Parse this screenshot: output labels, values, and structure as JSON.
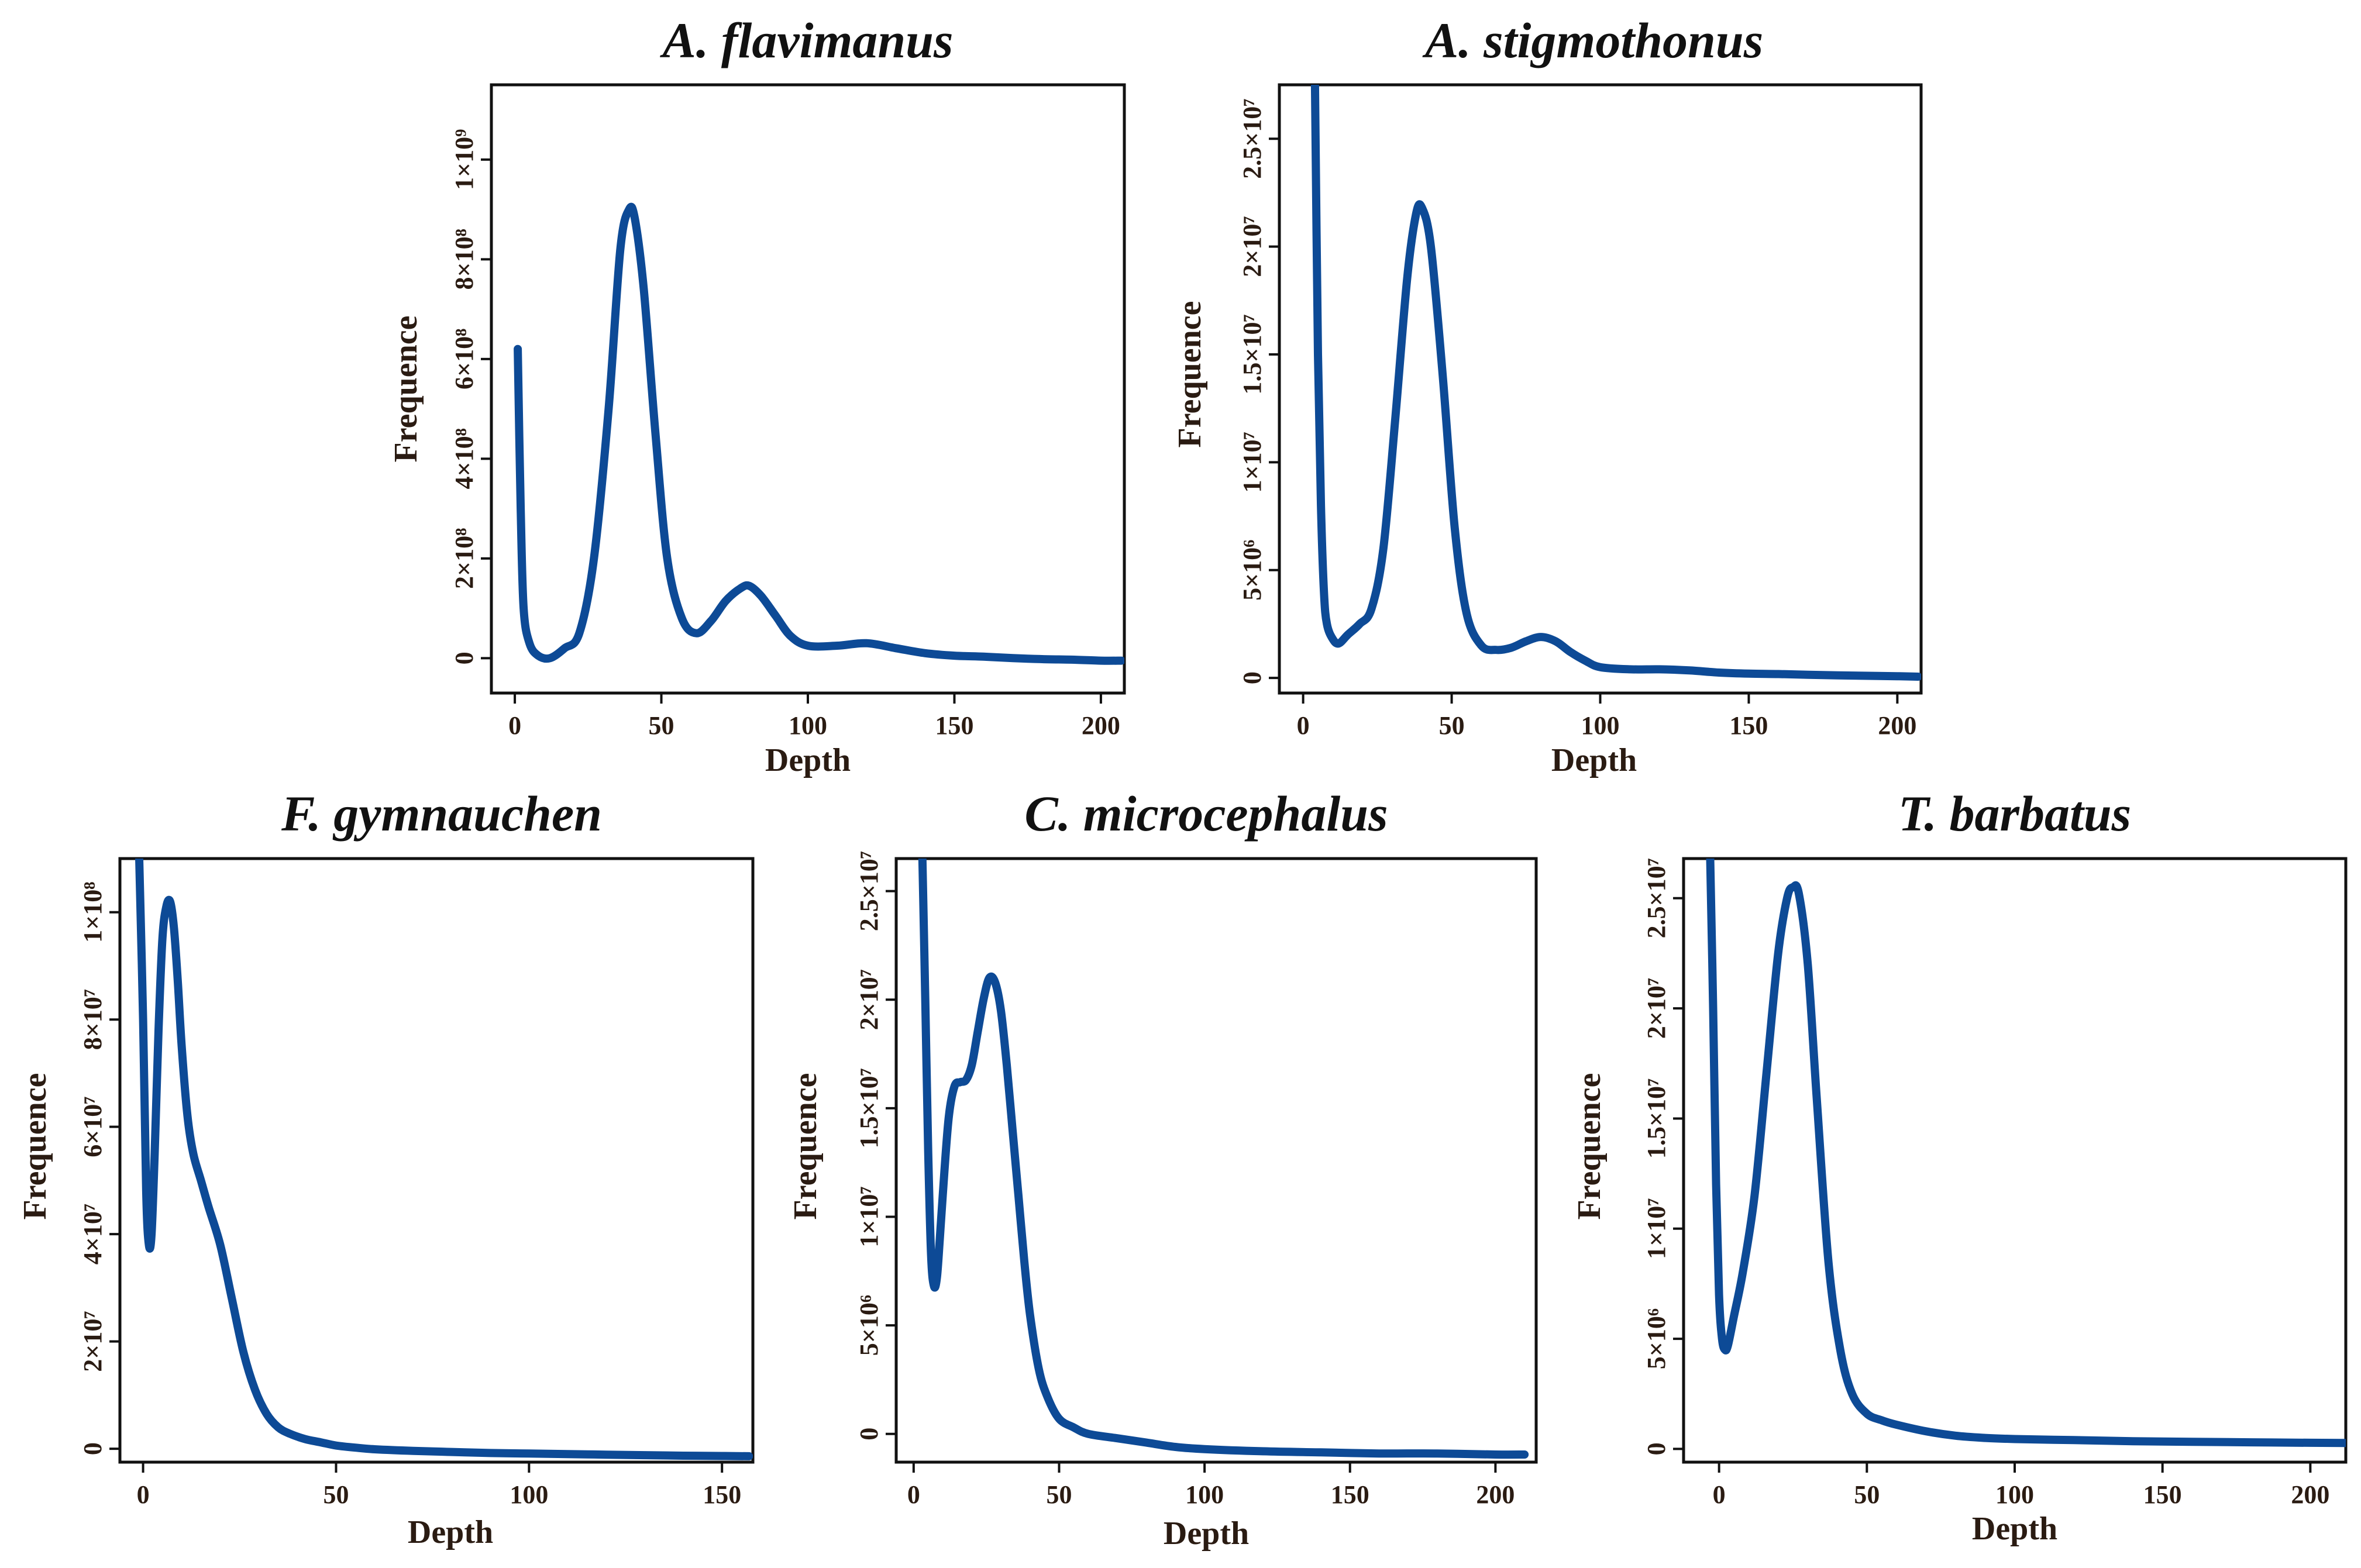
{
  "figure": {
    "line_color": "#0d4a96"
  },
  "chart_data": [
    {
      "id": "flavimanus",
      "type": "line",
      "title": "A. flavimanus",
      "xlabel": "Depth",
      "ylabel": "Frequence",
      "xlim": [
        -8,
        208
      ],
      "ylim": [
        -70000000,
        1150000000
      ],
      "xticks": [
        {
          "v": 0,
          "label": "0"
        },
        {
          "v": 50,
          "label": "50"
        },
        {
          "v": 100,
          "label": "100"
        },
        {
          "v": 150,
          "label": "150"
        },
        {
          "v": 200,
          "label": "200"
        }
      ],
      "yticks": [
        {
          "v": 0,
          "label": "0"
        },
        {
          "v": 200000000,
          "label": "2×10⁸"
        },
        {
          "v": 400000000,
          "label": "4×10⁸"
        },
        {
          "v": 600000000,
          "label": "6×10⁸"
        },
        {
          "v": 800000000,
          "label": "8×10⁸"
        },
        {
          "v": 1000000000,
          "label": "1×10⁹"
        }
      ],
      "series": [
        {
          "name": "A. flavimanus",
          "x": [
            1,
            2,
            3,
            5,
            8,
            12,
            17,
            22,
            27,
            32,
            36,
            39,
            41,
            44,
            48,
            52,
            57,
            62,
            67,
            72,
            77,
            80,
            84,
            89,
            94,
            100,
            110,
            120,
            130,
            140,
            150,
            160,
            170,
            180,
            190,
            200,
            207
          ],
          "y": [
            620000000,
            300000000,
            100000000,
            30000000,
            5000000,
            0,
            20000000,
            50000000,
            200000000,
            500000000,
            820000000,
            900000000,
            880000000,
            740000000,
            450000000,
            200000000,
            80000000,
            50000000,
            75000000,
            115000000,
            140000000,
            145000000,
            125000000,
            85000000,
            45000000,
            25000000,
            25000000,
            30000000,
            20000000,
            10000000,
            5000000,
            3000000,
            0,
            -2000000,
            -3000000,
            -5000000,
            -5000000
          ]
        }
      ]
    },
    {
      "id": "stigmothonus",
      "type": "line",
      "title": "A. stigmothonus",
      "xlabel": "Depth",
      "ylabel": "Frequence",
      "xlim": [
        -8,
        208
      ],
      "ylim": [
        -700000,
        27500000
      ],
      "xticks": [
        {
          "v": 0,
          "label": "0"
        },
        {
          "v": 50,
          "label": "50"
        },
        {
          "v": 100,
          "label": "100"
        },
        {
          "v": 150,
          "label": "150"
        },
        {
          "v": 200,
          "label": "200"
        }
      ],
      "yticks": [
        {
          "v": 0,
          "label": "0"
        },
        {
          "v": 5000000,
          "label": "5×10⁶"
        },
        {
          "v": 10000000,
          "label": "1×10⁷"
        },
        {
          "v": 15000000,
          "label": "1.5×10⁷"
        },
        {
          "v": 20000000,
          "label": "2×10⁷"
        },
        {
          "v": 25000000,
          "label": "2.5×10⁷"
        }
      ],
      "series": [
        {
          "name": "A. stigmothonus",
          "x": [
            4,
            5,
            6,
            7,
            8,
            10,
            12,
            15,
            19,
            23,
            27,
            31,
            35,
            38,
            40,
            43,
            47,
            51,
            55,
            60,
            65,
            70,
            75,
            80,
            85,
            90,
            95,
            100,
            110,
            120,
            130,
            140,
            150,
            160,
            170,
            180,
            190,
            200,
            207
          ],
          "y": [
            27500000,
            15000000,
            8000000,
            4000000,
            2500000,
            1800000,
            1600000,
            2000000,
            2500000,
            3200000,
            6000000,
            12000000,
            18500000,
            21500000,
            21800000,
            20000000,
            14000000,
            7000000,
            3000000,
            1500000,
            1300000,
            1400000,
            1700000,
            1900000,
            1700000,
            1200000,
            800000,
            500000,
            400000,
            400000,
            350000,
            250000,
            200000,
            180000,
            150000,
            120000,
            100000,
            80000,
            60000
          ]
        }
      ]
    },
    {
      "id": "gymnauchen",
      "type": "line",
      "title": "F. gymnauchen",
      "xlabel": "Depth",
      "ylabel": "Frequence",
      "xlim": [
        -6,
        158
      ],
      "ylim": [
        -2500000,
        110000000
      ],
      "xticks": [
        {
          "v": 0,
          "label": "0"
        },
        {
          "v": 50,
          "label": "50"
        },
        {
          "v": 100,
          "label": "100"
        },
        {
          "v": 150,
          "label": "150"
        }
      ],
      "yticks": [
        {
          "v": 0,
          "label": "0"
        },
        {
          "v": 20000000,
          "label": "2×10⁷"
        },
        {
          "v": 40000000,
          "label": "4×10⁷"
        },
        {
          "v": 60000000,
          "label": "6×10⁷"
        },
        {
          "v": 80000000,
          "label": "8×10⁷"
        },
        {
          "v": 100000000,
          "label": "1×10⁸"
        }
      ],
      "series": [
        {
          "name": "F. gymnauchen",
          "x": [
            -1,
            0,
            0.8,
            1.5,
            2.2,
            3,
            4,
            5,
            6,
            7,
            8,
            9,
            10,
            11.5,
            13,
            15,
            17,
            20,
            23,
            26,
            29,
            32,
            35,
            38,
            42,
            46,
            50,
            55,
            60,
            70,
            80,
            90,
            100,
            110,
            120,
            130,
            140,
            150,
            157
          ],
          "y": [
            110000000,
            80000000,
            48000000,
            38000000,
            40000000,
            55000000,
            78000000,
            95000000,
            101000000,
            102000000,
            97000000,
            87000000,
            75000000,
            62000000,
            55000000,
            50000000,
            45000000,
            38000000,
            28000000,
            18000000,
            11000000,
            6500000,
            4000000,
            2800000,
            1800000,
            1200000,
            600000,
            200000,
            -100000,
            -400000,
            -600000,
            -800000,
            -900000,
            -1000000,
            -1100000,
            -1200000,
            -1300000,
            -1350000,
            -1400000
          ]
        }
      ]
    },
    {
      "id": "microcephalus",
      "type": "line",
      "title": "C. microcephalus",
      "xlabel": "Depth",
      "ylabel": "Frequence",
      "xlim": [
        -6,
        214
      ],
      "ylim": [
        -1300000,
        26500000
      ],
      "xticks": [
        {
          "v": 0,
          "label": "0"
        },
        {
          "v": 50,
          "label": "50"
        },
        {
          "v": 100,
          "label": "100"
        },
        {
          "v": 150,
          "label": "150"
        },
        {
          "v": 200,
          "label": "200"
        }
      ],
      "yticks": [
        {
          "v": 0,
          "label": "0"
        },
        {
          "v": 5000000,
          "label": "5×10⁶"
        },
        {
          "v": 10000000,
          "label": "1×10⁷"
        },
        {
          "v": 15000000,
          "label": "1.5×10⁷"
        },
        {
          "v": 20000000,
          "label": "2×10⁷"
        },
        {
          "v": 25000000,
          "label": "2.5×10⁷"
        }
      ],
      "series": [
        {
          "name": "C. microcephalus",
          "x": [
            3,
            4,
            5,
            6,
            7,
            8,
            9,
            10,
            12,
            14,
            16,
            18,
            20,
            22,
            24,
            26,
            28,
            30,
            32,
            34,
            36,
            38,
            40,
            43,
            46,
            50,
            55,
            60,
            70,
            80,
            90,
            100,
            120,
            140,
            160,
            180,
            200,
            210
          ],
          "y": [
            26500000,
            20000000,
            13000000,
            8200000,
            6800000,
            7200000,
            9000000,
            11000000,
            14500000,
            16000000,
            16200000,
            16300000,
            17000000,
            18500000,
            20000000,
            21000000,
            20800000,
            19500000,
            17000000,
            14000000,
            11000000,
            8000000,
            5500000,
            3000000,
            1700000,
            700000,
            300000,
            0,
            -200000,
            -400000,
            -600000,
            -700000,
            -800000,
            -850000,
            -900000,
            -900000,
            -950000,
            -950000
          ]
        }
      ]
    },
    {
      "id": "barbatus",
      "type": "line",
      "title": "T. barbatus",
      "xlabel": "Depth",
      "ylabel": "Frequence",
      "xlim": [
        -12,
        212
      ],
      "ylim": [
        -600000,
        26800000
      ],
      "xticks": [
        {
          "v": 0,
          "label": "0"
        },
        {
          "v": 50,
          "label": "50"
        },
        {
          "v": 100,
          "label": "100"
        },
        {
          "v": 150,
          "label": "150"
        },
        {
          "v": 200,
          "label": "200"
        }
      ],
      "yticks": [
        {
          "v": 0,
          "label": "0"
        },
        {
          "v": 5000000,
          "label": "5×10⁶"
        },
        {
          "v": 10000000,
          "label": "1×10⁷"
        },
        {
          "v": 15000000,
          "label": "1.5×10⁷"
        },
        {
          "v": 20000000,
          "label": "2×10⁷"
        },
        {
          "v": 25000000,
          "label": "2.5×10⁷"
        }
      ],
      "series": [
        {
          "name": "T. barbatus",
          "x": [
            -3,
            -2,
            -1,
            0,
            1,
            2,
            3,
            5,
            8,
            12,
            16,
            20,
            23,
            25,
            27,
            30,
            33,
            37,
            41,
            45,
            50,
            55,
            60,
            70,
            80,
            90,
            100,
            120,
            140,
            160,
            180,
            200,
            212
          ],
          "y": [
            26800000,
            20000000,
            12000000,
            7000000,
            5000000,
            4500000,
            4700000,
            6000000,
            8000000,
            11500000,
            17000000,
            22500000,
            25000000,
            25500000,
            25200000,
            22000000,
            16000000,
            8500000,
            4500000,
            2500000,
            1600000,
            1300000,
            1100000,
            800000,
            600000,
            500000,
            450000,
            400000,
            350000,
            320000,
            300000,
            280000,
            270000
          ]
        }
      ]
    }
  ]
}
